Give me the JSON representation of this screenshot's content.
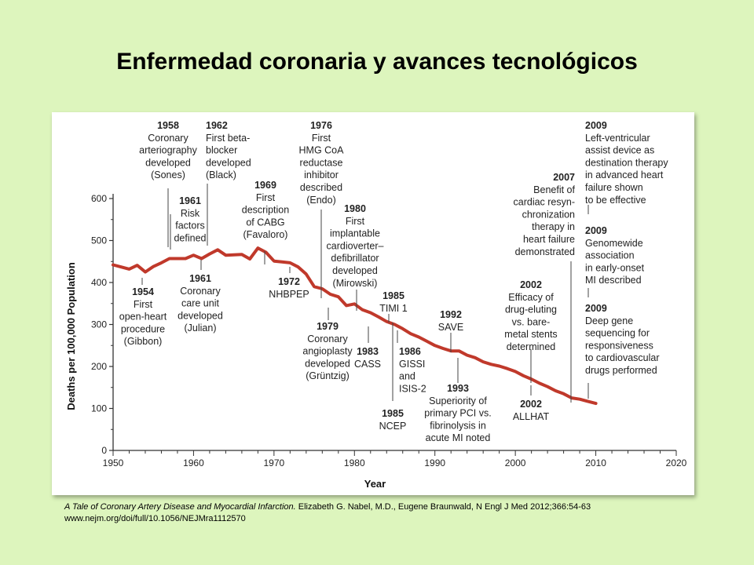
{
  "title": "Enfermedad coronaria y avances tecnológicos",
  "citation": {
    "line1_italic": "A Tale of Coronary Artery Disease and Myocardial Infarction.",
    "line1_rest": " Elizabeth G. Nabel, M.D., Eugene Braunwald, N Engl J Med 2012;366:54-63",
    "line2": "www.nejm.org/doi/full/10.1056/NEJMra1112570"
  },
  "colors": {
    "background": "#ddf5bd",
    "line": "#c0392b"
  },
  "chart_data": {
    "type": "line",
    "title": "",
    "xlabel": "Year",
    "ylabel": "Deaths per 100,000 Population",
    "xlim": [
      1950,
      2020
    ],
    "ylim": [
      0,
      600
    ],
    "xticks": [
      1950,
      1960,
      1970,
      1980,
      1990,
      2000,
      2010,
      2020
    ],
    "yticks": [
      0,
      100,
      200,
      300,
      400,
      500,
      600
    ],
    "grid": false,
    "series": [
      {
        "x": [
          1950,
          1951,
          1952,
          1953,
          1954,
          1955,
          1956,
          1957,
          1958,
          1959,
          1960,
          1961,
          1962,
          1963,
          1964,
          1965,
          1966,
          1967,
          1968,
          1969,
          1970,
          1971,
          1972,
          1973,
          1974,
          1975,
          1976,
          1977,
          1978,
          1979,
          1980,
          1981,
          1982,
          1983,
          1984,
          1985,
          1986,
          1987,
          1988,
          1989,
          1990,
          1991,
          1992,
          1993,
          1994,
          1995,
          1996,
          1997,
          1998,
          1999,
          2000,
          2001,
          2002,
          2003,
          2004,
          2005,
          2006,
          2007,
          2008,
          2009,
          2010
        ],
        "y": [
          442,
          437,
          432,
          441,
          425,
          438,
          447,
          457,
          457,
          457,
          465,
          457,
          468,
          478,
          465,
          466,
          467,
          456,
          482,
          472,
          451,
          449,
          447,
          437,
          420,
          390,
          385,
          372,
          366,
          345,
          349,
          335,
          328,
          318,
          307,
          300,
          290,
          278,
          270,
          260,
          250,
          243,
          237,
          237,
          227,
          221,
          211,
          205,
          201,
          195,
          188,
          178,
          170,
          160,
          152,
          142,
          135,
          125,
          122,
          117,
          112
        ]
      }
    ],
    "annotations": [
      {
        "year": "1954",
        "lines": [
          "First",
          "open-heart",
          "procedure",
          "(Gibbon)"
        ]
      },
      {
        "year": "1958",
        "lines": [
          "Coronary",
          "arteriography",
          "developed",
          "(Sones)"
        ]
      },
      {
        "year": "1961",
        "lines": [
          "Risk",
          "factors",
          "defined"
        ]
      },
      {
        "year": "1961",
        "lines": [
          "Coronary",
          "care unit",
          "developed",
          "(Julian)"
        ]
      },
      {
        "year": "1962",
        "lines": [
          "First beta-",
          "blocker",
          "developed",
          "(Black)"
        ]
      },
      {
        "year": "1969",
        "lines": [
          "First",
          "description",
          "of CABG",
          "(Favaloro)"
        ]
      },
      {
        "year": "1972",
        "lines": [
          "NHBPEP"
        ]
      },
      {
        "year": "1976",
        "lines": [
          "First",
          "HMG CoA",
          "reductase",
          "inhibitor",
          "described",
          "(Endo)"
        ]
      },
      {
        "year": "1979",
        "lines": [
          "Coronary",
          "angioplasty",
          "developed",
          "(Grüntzig)"
        ]
      },
      {
        "year": "1980",
        "lines": [
          "First",
          "implantable",
          "cardioverter–",
          "defibrillator",
          "developed",
          "(Mirowski)"
        ]
      },
      {
        "year": "1983",
        "lines": [
          "CASS"
        ]
      },
      {
        "year": "1985",
        "lines": [
          "TIMI 1"
        ]
      },
      {
        "year": "1985",
        "lines": [
          "NCEP"
        ]
      },
      {
        "year": "1986",
        "lines": [
          "GISSI",
          "and",
          "ISIS-2"
        ]
      },
      {
        "year": "1992",
        "lines": [
          "SAVE"
        ]
      },
      {
        "year": "1993",
        "lines": [
          "Superiority of",
          "primary PCI vs.",
          "fibrinolysis in",
          "acute MI noted"
        ]
      },
      {
        "year": "2002",
        "lines": [
          "Efficacy of",
          "drug-eluting",
          "vs. bare-",
          "metal stents",
          "determined"
        ]
      },
      {
        "year": "2002",
        "lines": [
          "ALLHAT"
        ]
      },
      {
        "year": "2007",
        "lines": [
          "Benefit of",
          "cardiac resyn-",
          "chronization",
          "therapy in",
          "heart failure",
          "demonstrated"
        ]
      },
      {
        "year": "2009",
        "lines": [
          "Left-ventricular",
          "assist device as",
          "destination therapy",
          "in advanced heart",
          "failure shown",
          "to be effective"
        ]
      },
      {
        "year": "2009",
        "lines": [
          "Genomewide",
          "association",
          "in early-onset",
          "MI described"
        ]
      },
      {
        "year": "2009",
        "lines": [
          "Deep gene",
          "sequencing for",
          "responsiveness",
          "to cardiovascular",
          "drugs performed"
        ]
      }
    ]
  }
}
